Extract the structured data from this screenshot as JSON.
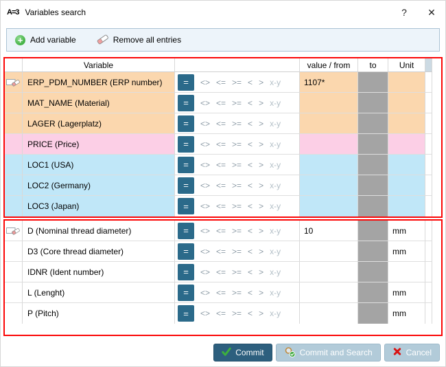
{
  "window": {
    "icon_text": "A=3",
    "title": "Variables search",
    "help_label": "?",
    "close_label": "✕"
  },
  "toolbar": {
    "add_variable": "Add variable",
    "remove_all": "Remove all entries"
  },
  "table": {
    "headers": {
      "variable": "Variable",
      "value_from": "value / from",
      "to": "to",
      "unit": "Unit"
    },
    "operators": [
      "=",
      "<>",
      "<=",
      ">=",
      "<",
      ">",
      "x-y"
    ],
    "selected_operator": "=",
    "row_colors": {
      "orange": "#fbd7ae",
      "pink": "#fccfe6",
      "blue": "#c0e7f8",
      "white": "#ffffff"
    },
    "groups": [
      {
        "rows": [
          {
            "variable": "ERP_PDM_NUMBER (ERP number)",
            "color": "orange",
            "value": "1107*",
            "unit": "",
            "clear_icon": true
          },
          {
            "variable": "MAT_NAME (Material)",
            "color": "orange",
            "value": "",
            "unit": "",
            "clear_icon": false
          },
          {
            "variable": "LAGER (Lagerplatz)",
            "color": "orange",
            "value": "",
            "unit": "",
            "clear_icon": false
          },
          {
            "variable": "PRICE (Price)",
            "color": "pink",
            "value": "",
            "unit": "",
            "clear_icon": false
          },
          {
            "variable": "LOC1 (USA)",
            "color": "blue",
            "value": "",
            "unit": "",
            "clear_icon": false
          },
          {
            "variable": "LOC2 (Germany)",
            "color": "blue",
            "value": "",
            "unit": "",
            "clear_icon": false
          },
          {
            "variable": "LOC3 (Japan)",
            "color": "blue",
            "value": "",
            "unit": "",
            "clear_icon": false
          }
        ]
      },
      {
        "rows": [
          {
            "variable": "D (Nominal thread diameter)",
            "color": "white",
            "value": "10",
            "unit": "mm",
            "clear_icon": true
          },
          {
            "variable": "D3 (Core thread diameter)",
            "color": "white",
            "value": "",
            "unit": "mm",
            "clear_icon": false
          },
          {
            "variable": "IDNR (Ident number)",
            "color": "white",
            "value": "",
            "unit": "",
            "clear_icon": false
          },
          {
            "variable": "L (Lenght)",
            "color": "white",
            "value": "",
            "unit": "mm",
            "clear_icon": false
          },
          {
            "variable": "P (Pitch)",
            "color": "white",
            "value": "",
            "unit": "mm",
            "clear_icon": false
          }
        ]
      }
    ]
  },
  "footer": {
    "commit": "Commit",
    "commit_and_search": "Commit and Search",
    "cancel": "Cancel"
  },
  "colors": {
    "accent_dark": "#2b6a8a",
    "group_border": "#fb0505",
    "disabled_cell": "#a4a4a4",
    "toolbar_bg": "#edf4fa",
    "button_light": "#b2cbd9",
    "button_dark": "#2d5f7e"
  }
}
